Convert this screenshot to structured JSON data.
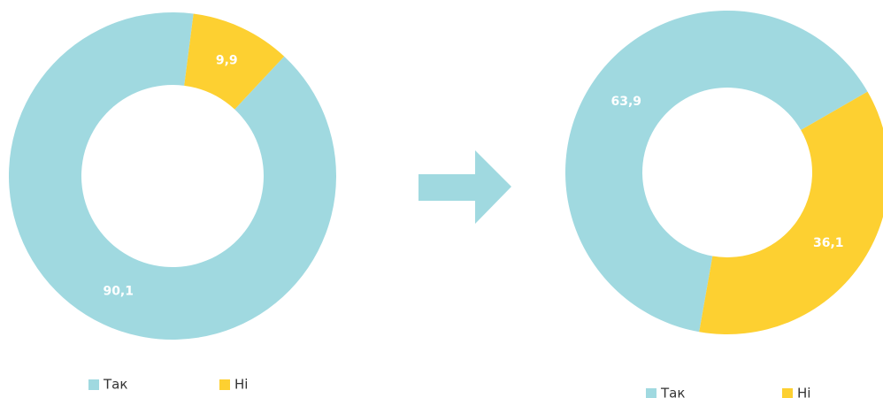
{
  "chart_data": [
    {
      "type": "donut",
      "categories": [
        "Так",
        "Ні"
      ],
      "values": [
        90.1,
        9.9
      ],
      "value_labels": [
        "90,1",
        "9,9"
      ],
      "colors": [
        "#a0d9e0",
        "#fdd031"
      ]
    },
    {
      "type": "donut",
      "categories": [
        "Так",
        "Ні"
      ],
      "values": [
        63.9,
        36.1
      ],
      "value_labels": [
        "63,9",
        "36,1"
      ],
      "colors": [
        "#a0d9e0",
        "#fdd031"
      ]
    }
  ]
}
